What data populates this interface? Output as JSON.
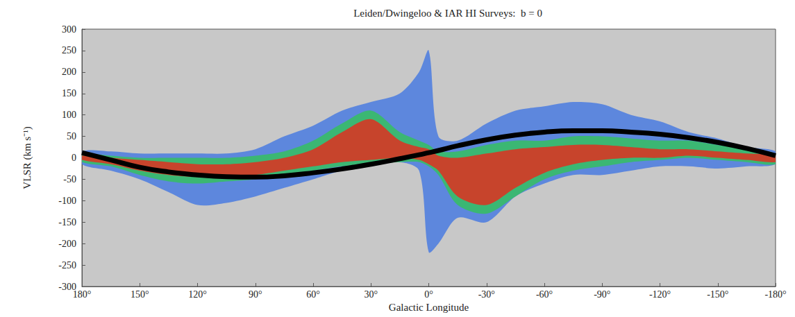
{
  "chart_data": {
    "type": "line",
    "title": "Leiden/Dwingeloo & IAR HI Surveys:  b = 0",
    "x_label": "Galactic Longitude",
    "y_label": "VLSR (km s⁻¹)",
    "xlim": [
      180,
      -180
    ],
    "xticks": [
      {
        "value": 180,
        "label": "180°"
      },
      {
        "value": 150,
        "label": "150°"
      },
      {
        "value": 120,
        "label": "120°"
      },
      {
        "value": 90,
        "label": "90°"
      },
      {
        "value": 60,
        "label": "60°"
      },
      {
        "value": 30,
        "label": "30°"
      },
      {
        "value": 0,
        "label": "0°"
      },
      {
        "value": -30,
        "label": "-30°"
      },
      {
        "value": -60,
        "label": "-60°"
      },
      {
        "value": -90,
        "label": "-90°"
      },
      {
        "value": -120,
        "label": "-120°"
      },
      {
        "value": -150,
        "label": "-150°"
      },
      {
        "value": -180,
        "label": "-180°"
      }
    ],
    "ylim": [
      -300,
      300
    ],
    "yticks": [
      -300,
      -250,
      -200,
      -150,
      -100,
      -50,
      0,
      50,
      100,
      150,
      200,
      250,
      300
    ],
    "grid": false,
    "x": [
      180,
      165,
      150,
      135,
      120,
      105,
      90,
      75,
      60,
      45,
      30,
      15,
      5,
      0,
      -5,
      -15,
      -30,
      -45,
      -60,
      -75,
      -90,
      -105,
      -120,
      -135,
      -150,
      -165,
      -180
    ],
    "series": [
      {
        "type": "area",
        "color": "#4a7be0",
        "upper": [
          15,
          15,
          10,
          10,
          10,
          10,
          20,
          50,
          75,
          110,
          130,
          150,
          200,
          250,
          50,
          40,
          80,
          110,
          120,
          130,
          125,
          100,
          85,
          60,
          45,
          25,
          15
        ],
        "lower": [
          -15,
          -30,
          -50,
          -80,
          -110,
          -105,
          -90,
          -70,
          -50,
          -30,
          -20,
          -10,
          -30,
          -220,
          -200,
          -140,
          -150,
          -90,
          -60,
          -40,
          -40,
          -30,
          -20,
          -20,
          -25,
          -20,
          -15
        ]
      },
      {
        "type": "area",
        "color": "#35c060",
        "upper": [
          8,
          5,
          0,
          0,
          0,
          0,
          5,
          15,
          40,
          80,
          110,
          60,
          40,
          30,
          15,
          15,
          30,
          40,
          40,
          50,
          50,
          45,
          40,
          40,
          30,
          20,
          10
        ],
        "lower": [
          -10,
          -20,
          -40,
          -55,
          -60,
          -55,
          -50,
          -40,
          -30,
          -20,
          -15,
          -10,
          -10,
          -20,
          -40,
          -110,
          -130,
          -90,
          -50,
          -30,
          -20,
          -10,
          -5,
          0,
          -5,
          -10,
          -15
        ]
      },
      {
        "type": "area",
        "color": "#e03020",
        "upper": [
          5,
          0,
          -5,
          -10,
          -15,
          -15,
          -10,
          0,
          20,
          60,
          90,
          40,
          25,
          20,
          5,
          0,
          10,
          20,
          25,
          30,
          30,
          25,
          20,
          20,
          15,
          10,
          5
        ],
        "lower": [
          -5,
          -15,
          -30,
          -40,
          -45,
          -45,
          -40,
          -30,
          -20,
          -10,
          -5,
          0,
          -5,
          -15,
          -30,
          -90,
          -110,
          -70,
          -35,
          -15,
          -5,
          0,
          0,
          5,
          0,
          -5,
          -10
        ]
      },
      {
        "type": "line",
        "color": "#000000",
        "values": [
          12,
          -5,
          -22,
          -33,
          -40,
          -44,
          -45,
          -42,
          -35,
          -26,
          -15,
          -2,
          7,
          12,
          17,
          28,
          42,
          53,
          60,
          63,
          63,
          60,
          55,
          47,
          36,
          22,
          5
        ]
      }
    ]
  }
}
